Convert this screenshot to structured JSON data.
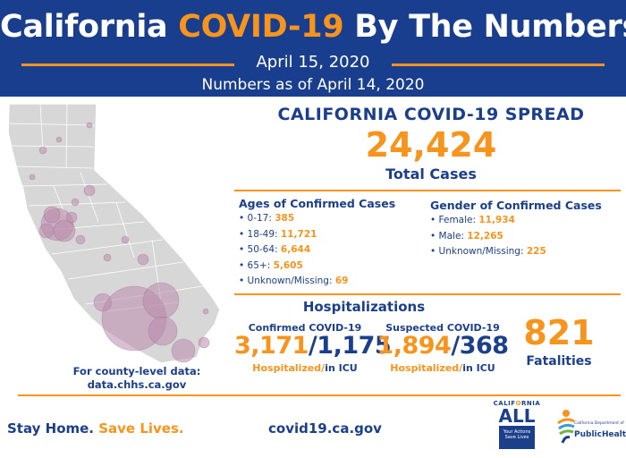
{
  "header": {
    "title_pre": "California ",
    "title_hl": "COVID-19",
    "title_post": " By The Numbers",
    "date": "April 15, 2020",
    "as_of": "Numbers as of April 14, 2020"
  },
  "spread": {
    "title": "CALIFORNIA COVID-19 SPREAD",
    "total": "24,424",
    "total_label": "Total Cases"
  },
  "ages": {
    "title": "Ages of Confirmed Cases",
    "items": [
      {
        "label": "• 0-17: ",
        "value": "385"
      },
      {
        "label": "• 18-49: ",
        "value": "11,721"
      },
      {
        "label": "• 50-64: ",
        "value": "6,644"
      },
      {
        "label": "• 65+: ",
        "value": "5,605"
      },
      {
        "label": "• Unknown/Missing: ",
        "value": "69"
      }
    ]
  },
  "gender": {
    "title": "Gender of Confirmed Cases",
    "items": [
      {
        "label": "• Female: ",
        "value": "11,934"
      },
      {
        "label": "• Male: ",
        "value": "12,265"
      },
      {
        "label": "• Unknown/Missing: ",
        "value": "225"
      }
    ]
  },
  "hospitalizations": {
    "title": "Hospitalizations",
    "confirmed": {
      "label": "Confirmed COVID-19",
      "hospitalized": "3,171",
      "sep": "/",
      "icu": "1,175",
      "cap_hosp": "Hospitalized/",
      "cap_icu": "in ICU"
    },
    "suspected": {
      "label": "Suspected COVID-19",
      "hospitalized": "1,894",
      "sep": "/",
      "icu": "368",
      "cap_hosp": "Hospitalized/",
      "cap_icu": "in ICU"
    }
  },
  "fatalities": {
    "value": "821",
    "label": "Fatalities"
  },
  "map": {
    "note_line1": "For county-level data:",
    "note_line2": "data.chhs.ca.gov",
    "land_color": "#d7d7d7",
    "bubble_color": "#b98aab"
  },
  "footer": {
    "slogan_1": "Stay Home. ",
    "slogan_2": "Save Lives.",
    "url": "covid19.ca.gov"
  },
  "logos": {
    "ca_top_1": "CALIF",
    "ca_top_2": "O",
    "ca_top_3": "RNIA",
    "ca_all": "ALL",
    "ca_box": "Your Actions Save Lives",
    "cdph_small": "California Department of",
    "cdph_big": "PublicHealth"
  },
  "colors": {
    "navy": "#1a3e8e",
    "orange": "#f7941d"
  }
}
